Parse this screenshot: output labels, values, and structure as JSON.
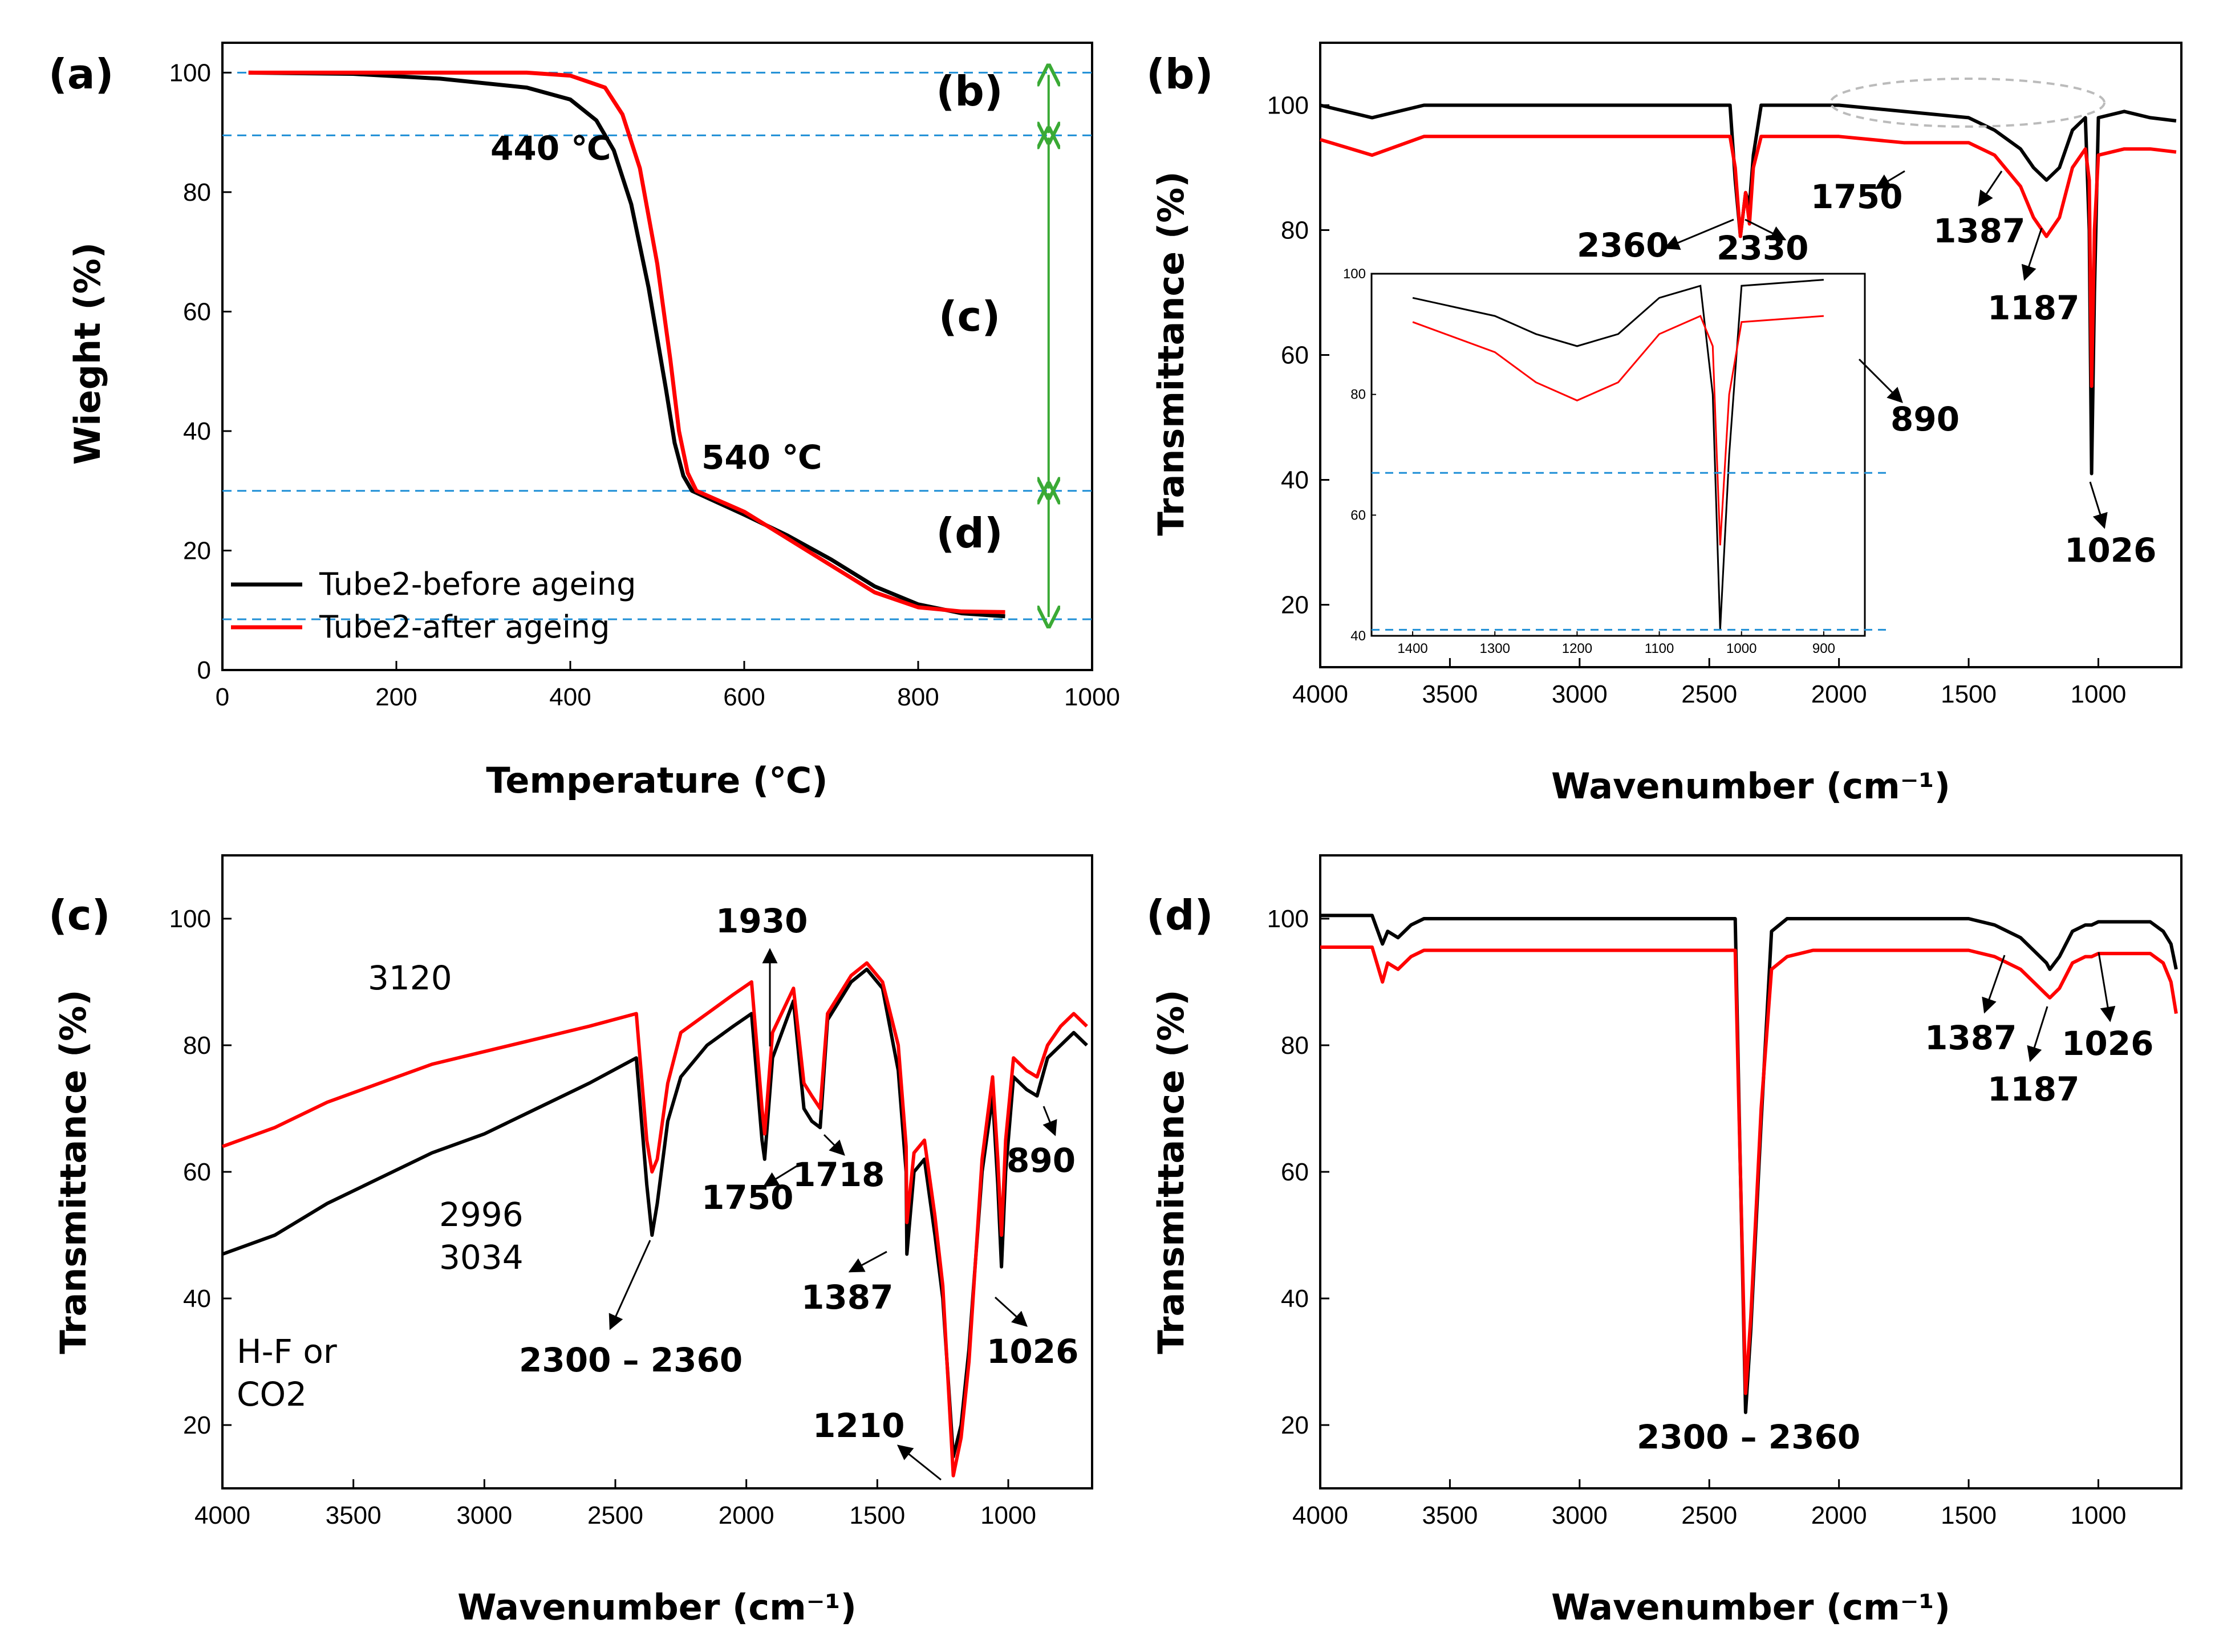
{
  "colors": {
    "before": "#000000",
    "after": "#ff0000",
    "guide": "#1f8fd6",
    "bracket": "#3aaa35",
    "ellipse": "#bbbbbb"
  },
  "legend": {
    "before": "Tube2-before ageing",
    "after": "Tube2-after ageing"
  },
  "chart_data": [
    {
      "panel": "(a)",
      "type": "line",
      "xlabel": "Temperature (℃)",
      "ylabel": "Wieght (%)",
      "xlim": [
        0,
        1000
      ],
      "ylim": [
        0,
        105
      ],
      "xticks": [
        "0",
        "200",
        "400",
        "600",
        "800",
        "1000"
      ],
      "yticks": [
        "0",
        "20",
        "40",
        "60",
        "80",
        "100"
      ],
      "reference_lines_y": [
        100,
        89.5,
        30,
        8.5
      ],
      "regions": [
        "(b)",
        "(c)",
        "(d)"
      ],
      "annotations": [
        "440 ℃",
        "540 ℃"
      ],
      "series": [
        {
          "name": "Tube2-before ageing",
          "x": [
            30,
            150,
            250,
            350,
            400,
            430,
            450,
            470,
            490,
            510,
            520,
            530,
            540,
            600,
            650,
            700,
            750,
            800,
            850,
            900
          ],
          "y": [
            100,
            99.8,
            99,
            97.5,
            95.5,
            92,
            87,
            78,
            64,
            47,
            38,
            32.5,
            30,
            26,
            22.5,
            18.5,
            14,
            11,
            9.5,
            9
          ]
        },
        {
          "name": "Tube2-after ageing",
          "x": [
            30,
            150,
            250,
            350,
            400,
            440,
            460,
            480,
            500,
            515,
            525,
            535,
            545,
            600,
            650,
            700,
            750,
            800,
            850,
            900
          ],
          "y": [
            100,
            100,
            100,
            100,
            99.5,
            97.5,
            93,
            84,
            68,
            52,
            40,
            33,
            30,
            26.5,
            22,
            17.5,
            13,
            10.5,
            9.8,
            9.7
          ]
        }
      ]
    },
    {
      "panel": "(b)",
      "type": "line",
      "xlabel": "Wavenumber (cm⁻¹)",
      "ylabel": "Transmittance (%)",
      "xlim": [
        4000,
        680
      ],
      "ylim": [
        10,
        110
      ],
      "xticks": [
        "4000",
        "3500",
        "3000",
        "2500",
        "2000",
        "1500",
        "1000"
      ],
      "yticks": [
        "20",
        "40",
        "60",
        "80",
        "100"
      ],
      "annotations": [
        "2360",
        "2330",
        "1750",
        "1387",
        "1187",
        "1026",
        "890"
      ],
      "inset": {
        "xticks": [
          "1400",
          "1300",
          "1200",
          "1100",
          "1000",
          "900"
        ],
        "yticks": [
          "40",
          "60",
          "80",
          "100"
        ],
        "xlim": [
          1450,
          850
        ],
        "ylim": [
          40,
          100
        ]
      },
      "series": [
        {
          "name": "Tube2-before ageing",
          "x": [
            4000,
            3800,
            3600,
            3000,
            2500,
            2420,
            2400,
            2380,
            2360,
            2345,
            2330,
            2300,
            2250,
            2000,
            1750,
            1500,
            1400,
            1300,
            1250,
            1200,
            1150,
            1100,
            1050,
            1035,
            1026,
            1015,
            1000,
            900,
            800,
            700
          ],
          "y": [
            100,
            98,
            100,
            100,
            100,
            100,
            88,
            79,
            86,
            84,
            92,
            100,
            100,
            100,
            99,
            98,
            96,
            93,
            90,
            88,
            90,
            96,
            98,
            80,
            41,
            70,
            98,
            99,
            98,
            97.5
          ]
        },
        {
          "name": "Tube2-after ageing",
          "x": [
            4000,
            3800,
            3600,
            3000,
            2500,
            2420,
            2400,
            2380,
            2360,
            2345,
            2330,
            2300,
            2250,
            2000,
            1750,
            1500,
            1400,
            1300,
            1250,
            1200,
            1150,
            1100,
            1050,
            1035,
            1026,
            1015,
            1000,
            900,
            800,
            700
          ],
          "y": [
            94.5,
            92,
            95,
            95,
            95,
            95,
            90,
            79,
            86,
            81,
            90,
            95,
            95,
            95,
            94,
            94,
            92,
            87,
            82,
            79,
            82,
            90,
            93,
            88,
            55,
            80,
            92,
            93,
            93,
            92.5
          ]
        }
      ]
    },
    {
      "panel": "(c)",
      "type": "line",
      "xlabel": "Wavenumber (cm⁻¹)",
      "ylabel": "Transmittance (%)",
      "xlim": [
        4000,
        680
      ],
      "ylim": [
        10,
        110
      ],
      "xticks": [
        "4000",
        "3500",
        "3000",
        "2500",
        "2000",
        "1500",
        "1000"
      ],
      "yticks": [
        "20",
        "40",
        "60",
        "80",
        "100"
      ],
      "annotations": [
        "3120",
        "2996",
        "3034",
        "H-F or",
        "CO2",
        "2300 – 2360",
        "1930",
        "1750",
        "1718",
        "1387",
        "1210",
        "1026",
        "890"
      ],
      "series": [
        {
          "name": "Tube2-before ageing",
          "x": [
            4000,
            3800,
            3600,
            3400,
            3200,
            3000,
            2800,
            2600,
            2420,
            2380,
            2360,
            2340,
            2300,
            2250,
            2150,
            2050,
            1980,
            1940,
            1930,
            1900,
            1820,
            1780,
            1750,
            1718,
            1690,
            1600,
            1540,
            1480,
            1420,
            1390,
            1387,
            1360,
            1320,
            1280,
            1250,
            1210,
            1180,
            1150,
            1100,
            1060,
            1040,
            1026,
            1010,
            980,
            930,
            890,
            850,
            800,
            750,
            700
          ],
          "y": [
            47,
            50,
            55,
            59,
            63,
            66,
            70,
            74,
            78,
            58,
            50,
            55,
            68,
            75,
            80,
            83,
            85,
            65,
            62,
            78,
            87,
            70,
            68,
            67,
            84,
            90,
            92,
            89,
            76,
            60,
            47,
            60,
            62,
            50,
            40,
            15,
            20,
            32,
            60,
            72,
            58,
            45,
            60,
            75,
            73,
            72,
            78,
            80,
            82,
            80
          ]
        },
        {
          "name": "Tube2-after ageing",
          "x": [
            4000,
            3800,
            3600,
            3400,
            3200,
            3000,
            2800,
            2600,
            2420,
            2380,
            2360,
            2340,
            2300,
            2250,
            2150,
            2050,
            1980,
            1940,
            1930,
            1900,
            1820,
            1780,
            1750,
            1718,
            1690,
            1600,
            1540,
            1480,
            1420,
            1390,
            1387,
            1360,
            1320,
            1280,
            1250,
            1210,
            1180,
            1150,
            1100,
            1060,
            1040,
            1026,
            1010,
            980,
            930,
            890,
            850,
            800,
            750,
            700
          ],
          "y": [
            64,
            67,
            71,
            74,
            77,
            79,
            81,
            83,
            85,
            65,
            60,
            62,
            74,
            82,
            85,
            88,
            90,
            70,
            66,
            82,
            89,
            74,
            72,
            70,
            85,
            91,
            93,
            90,
            80,
            64,
            52,
            63,
            65,
            53,
            42,
            12,
            18,
            30,
            62,
            75,
            62,
            50,
            65,
            78,
            76,
            75,
            80,
            83,
            85,
            83
          ]
        }
      ]
    },
    {
      "panel": "(d)",
      "type": "line",
      "xlabel": "Wavenumber (cm⁻¹)",
      "ylabel": "Transmittance (%)",
      "xlim": [
        4000,
        680
      ],
      "ylim": [
        10,
        110
      ],
      "xticks": [
        "4000",
        "3500",
        "3000",
        "2500",
        "2000",
        "1500",
        "1000"
      ],
      "yticks": [
        "20",
        "40",
        "60",
        "80",
        "100"
      ],
      "annotations": [
        "2300 – 2360",
        "1387",
        "1187",
        "1026"
      ],
      "series": [
        {
          "name": "Tube2-before ageing",
          "x": [
            4000,
            3800,
            3760,
            3740,
            3700,
            3650,
            3600,
            3000,
            2500,
            2400,
            2380,
            2360,
            2340,
            2300,
            2260,
            2200,
            2100,
            1800,
            1500,
            1400,
            1300,
            1250,
            1200,
            1187,
            1150,
            1100,
            1050,
            1026,
            1000,
            900,
            800,
            750,
            720,
            700
          ],
          "y": [
            100.5,
            100.5,
            96,
            98,
            97,
            99,
            100,
            100,
            100,
            100,
            60,
            22,
            35,
            68,
            98,
            100,
            100,
            100,
            100,
            99,
            97,
            95,
            93,
            92,
            94,
            98,
            99,
            99,
            99.5,
            99.5,
            99.5,
            98,
            96,
            92
          ]
        },
        {
          "name": "Tube2-after ageing",
          "x": [
            4000,
            3800,
            3760,
            3740,
            3700,
            3650,
            3600,
            3000,
            2500,
            2400,
            2380,
            2360,
            2340,
            2300,
            2260,
            2200,
            2100,
            1800,
            1500,
            1400,
            1300,
            1250,
            1200,
            1187,
            1150,
            1100,
            1050,
            1026,
            1000,
            900,
            800,
            750,
            720,
            700
          ],
          "y": [
            95.5,
            95.5,
            90,
            93,
            92,
            94,
            95,
            95,
            95,
            95,
            60,
            25,
            37,
            70,
            92,
            94,
            95,
            95,
            95,
            94,
            92,
            90,
            88,
            87.5,
            89,
            93,
            94,
            94,
            94.5,
            94.5,
            94.5,
            93,
            90,
            85
          ]
        }
      ]
    }
  ]
}
